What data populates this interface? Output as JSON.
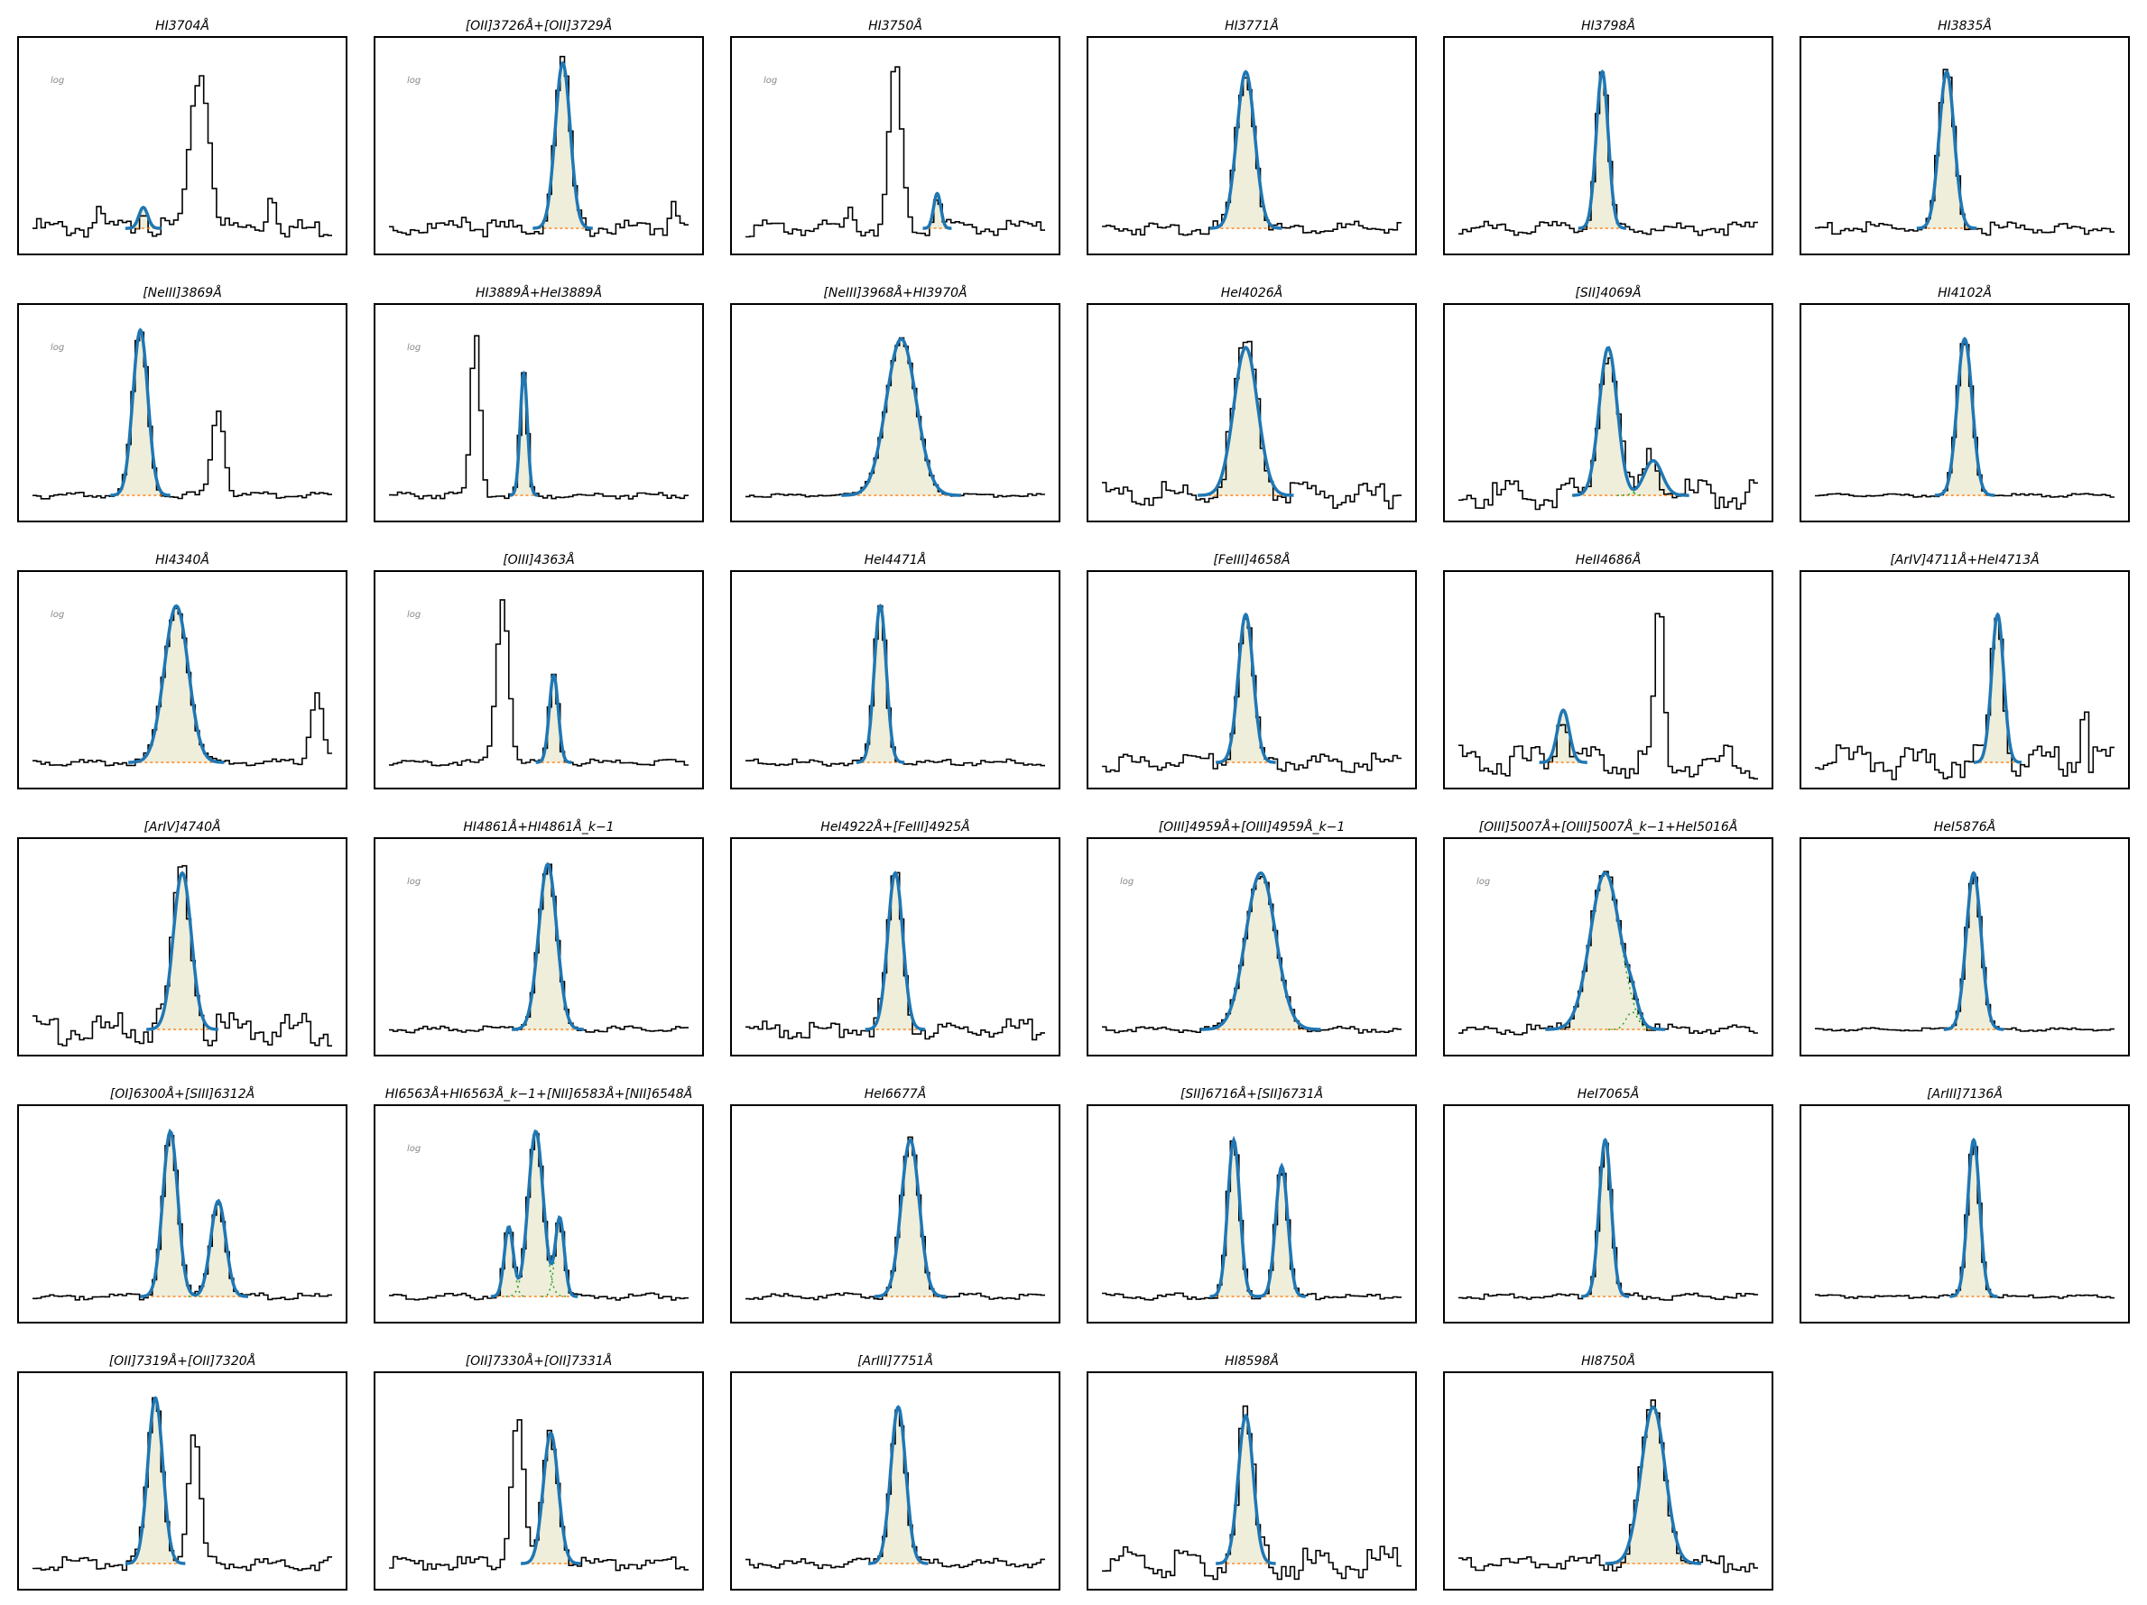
{
  "panels": [
    {
      "title": "HI3704Å",
      "note": "log"
    },
    {
      "title": "[OII]3726Å+[OII]3729Å",
      "note": "log"
    },
    {
      "title": "HI3750Å",
      "note": "log"
    },
    {
      "title": "HI3771Å"
    },
    {
      "title": "HI3798Å"
    },
    {
      "title": "HI3835Å"
    },
    {
      "title": "[NeIII]3869Å",
      "note": "log"
    },
    {
      "title": "HI3889Å+HeI3889Å",
      "note": "log"
    },
    {
      "title": "[NeIII]3968Å+HI3970Å"
    },
    {
      "title": "HeI4026Å"
    },
    {
      "title": "[SII]4069Å"
    },
    {
      "title": "HI4102Å"
    },
    {
      "title": "HI4340Å",
      "note": "log"
    },
    {
      "title": "[OIII]4363Å",
      "note": "log"
    },
    {
      "title": "HeI4471Å"
    },
    {
      "title": "[FeIII]4658Å"
    },
    {
      "title": "HeII4686Å"
    },
    {
      "title": "[ArIV]4711Å+HeI4713Å"
    },
    {
      "title": "[ArIV]4740Å"
    },
    {
      "title": "HI4861Å+HI4861Å_k−1",
      "note": "log"
    },
    {
      "title": "HeI4922Å+[FeIII]4925Å"
    },
    {
      "title": "[OIII]4959Å+[OIII]4959Å_k−1",
      "note": "log"
    },
    {
      "title": "[OIII]5007Å+[OIII]5007Å_k−1+HeI5016Å",
      "note": "log"
    },
    {
      "title": "HeI5876Å"
    },
    {
      "title": "[OI]6300Å+[SIII]6312Å"
    },
    {
      "title": "HI6563Å+HI6563Å_k−1+[NII]6583Å+[NII]6548Å",
      "note": "log"
    },
    {
      "title": "HeI6677Å"
    },
    {
      "title": "[SII]6716Å+[SII]6731Å"
    },
    {
      "title": "HeI7065Å"
    },
    {
      "title": "[ArIII]7136Å"
    },
    {
      "title": "[OII]7319Å+[OII]7320Å"
    },
    {
      "title": "[OII]7330Å+[OII]7331Å"
    },
    {
      "title": "[ArIII]7751Å"
    },
    {
      "title": "HI8598Å"
    },
    {
      "title": "HI8750Å"
    }
  ]
}
